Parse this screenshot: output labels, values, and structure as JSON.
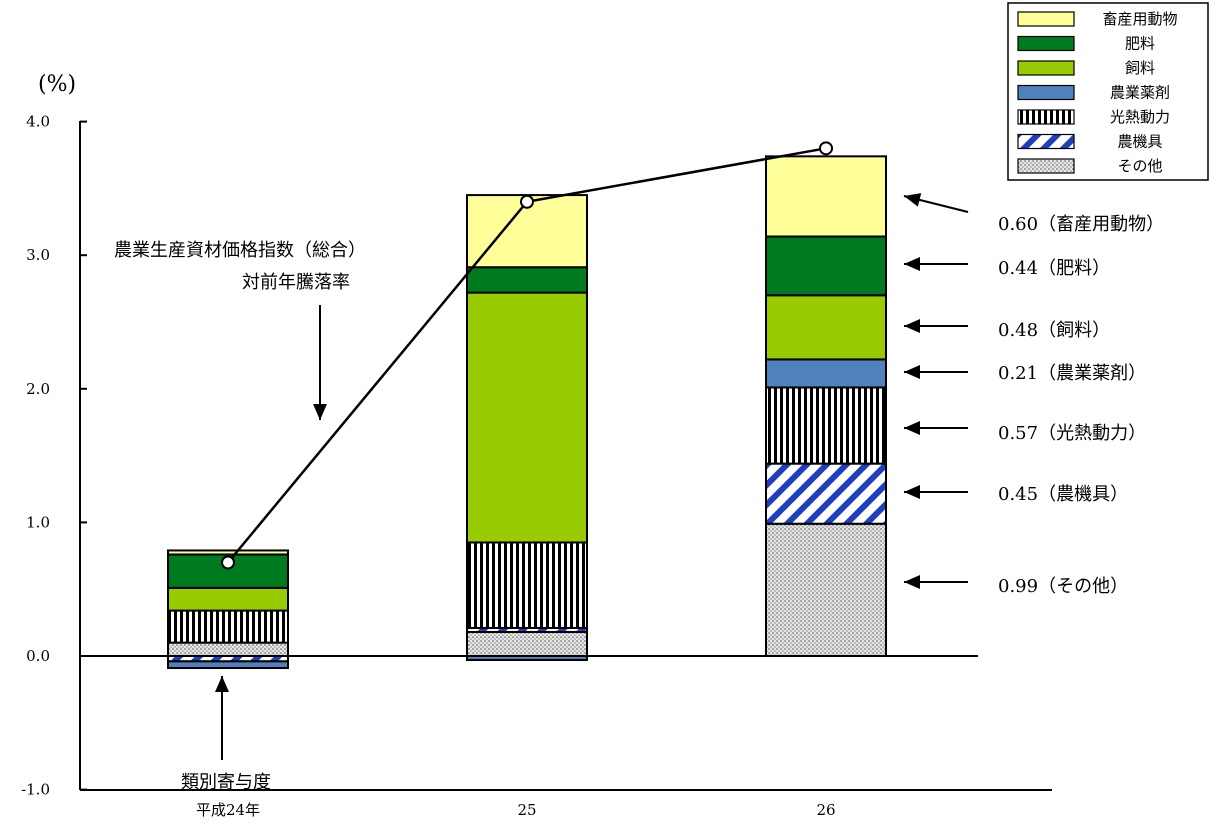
{
  "chart_data": {
    "type": "bar",
    "stacked": true,
    "title": "",
    "y_unit": "(%)",
    "ylim": [
      -1.0,
      4.0
    ],
    "yticks": [
      "4.0",
      "3.0",
      "2.0",
      "1.0",
      "0.0",
      "-1.0"
    ],
    "categories": [
      "平成24年",
      "25",
      "26"
    ],
    "series": [
      {
        "name": "その他",
        "color": "#d3d3d3",
        "pattern": "dots",
        "values": [
          0.1,
          0.18,
          0.99
        ]
      },
      {
        "name": "農機具",
        "color": "#1f3fbf",
        "pattern": "diagonal",
        "values": [
          -0.04,
          0.03,
          0.45
        ]
      },
      {
        "name": "光熱動力",
        "color": "#000000",
        "pattern": "vertical",
        "values": [
          0.24,
          0.64,
          0.57
        ]
      },
      {
        "name": "農業薬剤",
        "color": "#4f81bd",
        "pattern": "solid",
        "values": [
          -0.05,
          -0.03,
          0.21
        ]
      },
      {
        "name": "飼料",
        "color": "#99cc00",
        "pattern": "solid",
        "values": [
          0.17,
          1.87,
          0.48
        ]
      },
      {
        "name": "肥料",
        "color": "#007a1f",
        "pattern": "solid",
        "values": [
          0.25,
          0.19,
          0.44
        ]
      },
      {
        "name": "畜産用動物",
        "color": "#ffff99",
        "pattern": "solid",
        "values": [
          0.03,
          0.54,
          0.6
        ]
      }
    ],
    "line_series": {
      "name": "農業生産資材価格指数（総合）対前年騰落率",
      "values": [
        0.7,
        3.4,
        3.8
      ]
    },
    "legend": {
      "placement": "top-right",
      "entries": [
        "畜産用動物",
        "肥料",
        "飼料",
        "農業薬剤",
        "光熱動力",
        "農機具",
        "その他"
      ]
    },
    "annotations": {
      "line_label_1": "農業生産資材価格指数（総合）",
      "line_label_2": "対前年騰落率",
      "component_label": "類別寄与度",
      "right_labels": [
        "0.60（畜産用動物）",
        "0.44（肥料）",
        "0.48（飼料）",
        "0.21（農業薬剤）",
        "0.57（光熱動力）",
        "0.45（農機具）",
        "0.99（その他）"
      ]
    },
    "grid": false
  }
}
